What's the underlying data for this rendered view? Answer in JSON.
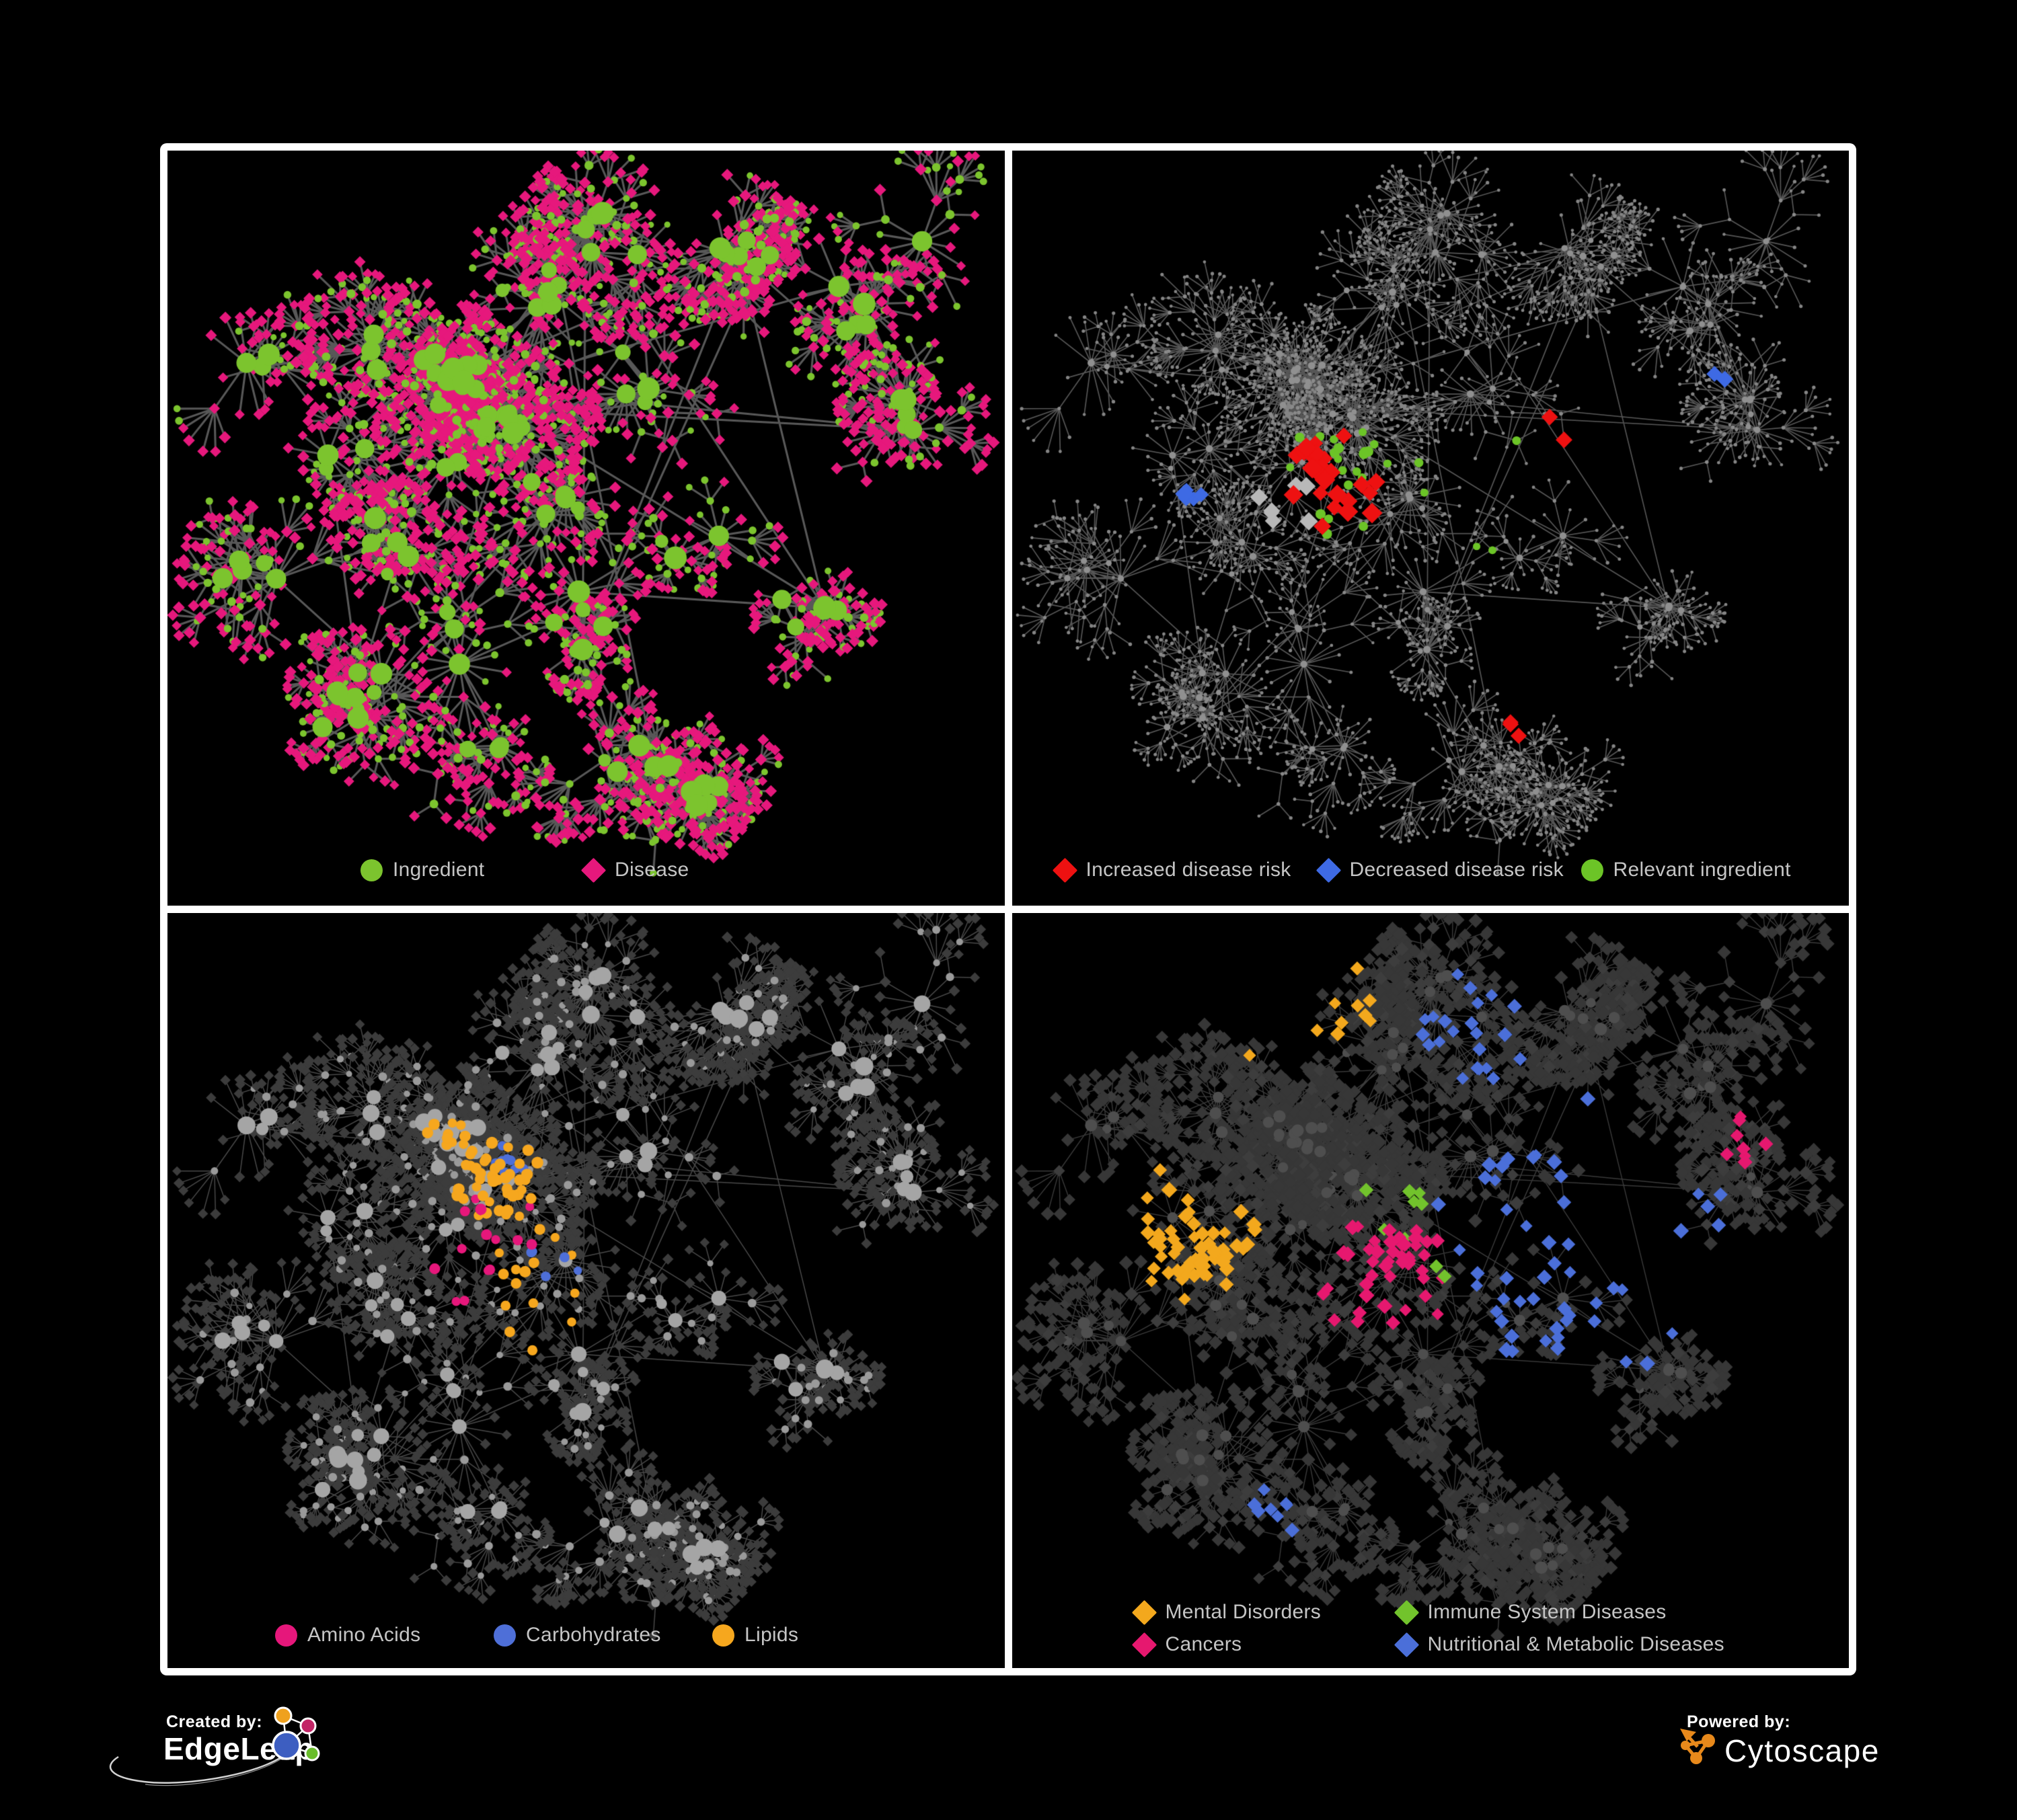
{
  "figure": {
    "description": "Four black network-graph panels in a white 2x2 frame on a black page",
    "background": "#000000",
    "frame_color": "#ffffff"
  },
  "network": {
    "seed": 1337,
    "hub_count": 120,
    "cluster_spread": 0.05,
    "extra_links": 22,
    "leaf_min": 3,
    "leaf_max": 16,
    "leaf_radius": [
      26,
      64
    ],
    "sub_prob": 0.22,
    "sub_min": 2,
    "sub_max": 7,
    "clusters": [
      [
        0.4,
        0.36
      ],
      [
        0.4,
        0.36
      ],
      [
        0.36,
        0.42
      ],
      [
        0.34,
        0.3
      ],
      [
        0.34,
        0.3
      ],
      [
        0.26,
        0.28
      ],
      [
        0.2,
        0.42
      ],
      [
        0.28,
        0.52
      ],
      [
        0.34,
        0.64
      ],
      [
        0.22,
        0.72
      ],
      [
        0.44,
        0.2
      ],
      [
        0.52,
        0.1
      ],
      [
        0.56,
        0.3
      ],
      [
        0.62,
        0.5
      ],
      [
        0.5,
        0.62
      ],
      [
        0.38,
        0.8
      ],
      [
        0.56,
        0.82
      ],
      [
        0.7,
        0.16
      ],
      [
        0.82,
        0.22
      ],
      [
        0.88,
        0.34
      ],
      [
        0.76,
        0.62
      ],
      [
        0.64,
        0.86
      ],
      [
        0.12,
        0.3
      ],
      [
        0.1,
        0.55
      ],
      [
        0.9,
        0.14
      ],
      [
        0.46,
        0.46
      ]
    ]
  },
  "panels": [
    {
      "name": "ingredient-disease",
      "legend": [
        {
          "shape": "circle",
          "color": "#7CC42E",
          "label": "Ingredient"
        },
        {
          "shape": "diamond",
          "color": "#E6187C",
          "label": "Disease"
        }
      ],
      "render": {
        "edge": {
          "color": "#676767",
          "width": 3.1,
          "alpha": 0.85
        },
        "hub_boost": [
          1.1,
          14
        ],
        "kinds": {
          "hub": {
            "shape": "circle",
            "color": "#7CC42E",
            "size": [
              13,
              20
            ]
          },
          "mid": {
            "mix": [
              {
                "shape": "diamond",
                "color": "#E6187C",
                "size": [
                  11,
                  13
                ],
                "w": 0.55
              },
              {
                "shape": "circle",
                "color": "#7CC42E",
                "size": [
                  10,
                  14
                ],
                "w": 0.45
              }
            ]
          },
          "leaf": {
            "mix": [
              {
                "shape": "diamond",
                "color": "#E6187C",
                "size": [
                  10,
                  13
                ],
                "w": 0.73
              },
              {
                "shape": "circle",
                "color": "#7CC42E",
                "size": [
                  9,
                  12
                ],
                "w": 0.27
              }
            ]
          }
        },
        "highlights": []
      }
    },
    {
      "name": "disease-risk",
      "legend": [
        {
          "shape": "diamond",
          "color": "#EE1111",
          "label": "Increased disease risk"
        },
        {
          "shape": "diamond",
          "color": "#3E6AE4",
          "label": "Decreased disease risk"
        },
        {
          "shape": "circle",
          "color": "#6CC427",
          "label": "Relevant ingredient"
        }
      ],
      "render": {
        "edge": {
          "color": "#656565",
          "width": 1.7,
          "alpha": 0.85
        },
        "hub_boost": [
          0.25,
          3
        ],
        "kinds": {
          "hub": {
            "shape": "circle",
            "color": "#909090",
            "size": [
              6,
              8
            ]
          },
          "mid": {
            "shape": "circle",
            "color": "#8A8A8A",
            "size": [
              5,
              6
            ]
          },
          "leaf": {
            "shape": "circle",
            "color": "#858585",
            "size": [
              4.5,
              5.5
            ]
          }
        },
        "highlights": [
          {
            "shape": "diamond",
            "color": "#EE1111",
            "count": 24,
            "at": [
              0.38,
              0.44
            ],
            "spread": 0.12,
            "size": [
              16,
              22
            ]
          },
          {
            "shape": "diamond",
            "color": "#EE1111",
            "count": 3,
            "at": [
              0.6,
              0.76
            ],
            "spread": 0.06,
            "size": [
              16,
              20
            ]
          },
          {
            "shape": "diamond",
            "color": "#EE1111",
            "count": 2,
            "at": [
              0.66,
              0.38
            ],
            "spread": 0.04,
            "size": [
              16,
              20
            ]
          },
          {
            "shape": "diamond",
            "color": "#B8B8B8",
            "count": 7,
            "at": [
              0.33,
              0.46
            ],
            "spread": 0.12,
            "size": [
              15,
              20
            ]
          },
          {
            "shape": "diamond",
            "color": "#3E6AE4",
            "count": 5,
            "at": [
              0.21,
              0.46
            ],
            "spread": 0.05,
            "size": [
              15,
              20
            ]
          },
          {
            "shape": "diamond",
            "color": "#3E6AE4",
            "count": 2,
            "at": [
              0.84,
              0.3
            ],
            "spread": 0.015,
            "size": [
              16,
              19
            ]
          },
          {
            "shape": "circle",
            "color": "#6CC427",
            "count": 25,
            "at": [
              0.39,
              0.44
            ],
            "spread": 0.12,
            "size": [
              12,
              16
            ]
          },
          {
            "shape": "circle",
            "color": "#6CC427",
            "count": 5,
            "at": [
              0.55,
              0.45
            ],
            "spread": 0.45,
            "size": [
              11,
              14
            ]
          }
        ]
      }
    },
    {
      "name": "nutrient-classes",
      "legend": [
        {
          "shape": "circle",
          "color": "#E6177B",
          "label": "Amino Acids"
        },
        {
          "shape": "circle",
          "color": "#4E6FD8",
          "label": "Carbohydrates"
        },
        {
          "shape": "circle",
          "color": "#F6A71E",
          "label": "Lipids"
        }
      ],
      "render": {
        "edge": {
          "color": "#7A7A7A",
          "width": 1.5,
          "alpha": 0.6
        },
        "hub_boost": [
          0.6,
          8
        ],
        "kinds": {
          "hub": {
            "shape": "circle",
            "color": "#A5A5A5",
            "size": [
              12,
              20
            ]
          },
          "mid": {
            "mix": [
              {
                "shape": "circle",
                "color": "#9A9A9A",
                "size": [
                  9,
                  13
                ],
                "w": 0.85
              },
              {
                "shape": "diamond",
                "color": "#3E3E3E",
                "size": [
                  10,
                  12
                ],
                "w": 0.15
              }
            ]
          },
          "leaf": {
            "shape": "diamond",
            "color": "#3C3C3C",
            "size": [
              10,
              12
            ]
          }
        },
        "highlights": [
          {
            "shape": "circle",
            "color": "#F6A71E",
            "count": 42,
            "at": [
              0.4,
              0.36
            ],
            "spread": 0.075,
            "size": [
              14,
              18
            ]
          },
          {
            "shape": "circle",
            "color": "#F6A71E",
            "count": 12,
            "at": [
              0.34,
              0.3
            ],
            "spread": 0.05,
            "size": [
              13,
              17
            ]
          },
          {
            "shape": "circle",
            "color": "#F6A71E",
            "count": 15,
            "at": [
              0.45,
              0.5
            ],
            "spread": 0.4,
            "size": [
              13,
              17
            ]
          },
          {
            "shape": "circle",
            "color": "#4E6FD8",
            "count": 9,
            "at": [
              0.41,
              0.34
            ],
            "spread": 0.05,
            "size": [
              13,
              16
            ]
          },
          {
            "shape": "circle",
            "color": "#4E6FD8",
            "count": 5,
            "at": [
              0.45,
              0.45
            ],
            "spread": 0.5,
            "size": [
              12,
              15
            ]
          },
          {
            "shape": "circle",
            "color": "#E6177B",
            "count": 15,
            "at": [
              0.38,
              0.45
            ],
            "spread": 0.42,
            "size": [
              13,
              17
            ]
          }
        ]
      }
    },
    {
      "name": "disease-classes",
      "legend": [
        {
          "shape": "diamond",
          "color": "#F3A81D",
          "label": "Mental Disorders"
        },
        {
          "shape": "diamond",
          "color": "#72C32C",
          "label": "Immune System Diseases"
        },
        {
          "shape": "diamond",
          "color": "#E6186F",
          "label": "Cancers"
        },
        {
          "shape": "diamond",
          "color": "#4B6FD9",
          "label": "Nutritional & Metabolic Diseases"
        }
      ],
      "render": {
        "edge": {
          "color": "#6B6B6B",
          "width": 1.4,
          "alpha": 0.55
        },
        "hub_boost": [
          0.5,
          6
        ],
        "kinds": {
          "hub": {
            "shape": "circle",
            "color": "#4E4E4E",
            "size": [
              9,
              13
            ]
          },
          "mid": {
            "shape": "diamond",
            "color": "#3D3D3D",
            "size": [
              12,
              15
            ]
          },
          "leaf": {
            "shape": "diamond",
            "color": "#373737",
            "size": [
              12,
              15
            ]
          }
        },
        "highlights": [
          {
            "shape": "diamond",
            "color": "#F3A81D",
            "count": 60,
            "at": [
              0.2,
              0.44
            ],
            "spread": 0.09,
            "size": [
              13,
              17
            ]
          },
          {
            "shape": "diamond",
            "color": "#F3A81D",
            "count": 10,
            "at": [
              0.34,
              0.12
            ],
            "spread": 0.12,
            "size": [
              13,
              16
            ]
          },
          {
            "shape": "diamond",
            "color": "#E6186F",
            "count": 44,
            "at": [
              0.45,
              0.48
            ],
            "spread": 0.11,
            "size": [
              13,
              17
            ]
          },
          {
            "shape": "diamond",
            "color": "#E6186F",
            "count": 8,
            "at": [
              0.87,
              0.3
            ],
            "spread": 0.05,
            "size": [
              13,
              16
            ]
          },
          {
            "shape": "diamond",
            "color": "#4B6FD9",
            "count": 50,
            "at": [
              0.68,
              0.45
            ],
            "spread": 0.18,
            "size": [
              13,
              17
            ]
          },
          {
            "shape": "diamond",
            "color": "#4B6FD9",
            "count": 22,
            "at": [
              0.56,
              0.14
            ],
            "spread": 0.25,
            "size": [
              13,
              16
            ]
          },
          {
            "shape": "diamond",
            "color": "#4B6FD9",
            "count": 8,
            "at": [
              0.32,
              0.78
            ],
            "spread": 0.18,
            "size": [
              13,
              16
            ]
          },
          {
            "shape": "diamond",
            "color": "#72C32C",
            "count": 9,
            "at": [
              0.48,
              0.42
            ],
            "spread": 0.45,
            "size": [
              13,
              16
            ]
          }
        ]
      }
    }
  ],
  "branding": {
    "created_by": "Created by:",
    "creator": "EdgeLeap",
    "powered_by": "Powered by:",
    "engine": "Cytoscape",
    "edgeleap_colors": {
      "orange": "#EFA11E",
      "pink": "#C22566",
      "blue": "#3D5EC1",
      "green": "#69BD2A",
      "line": "#FFFFFF"
    },
    "cytoscape_color": "#E8891B"
  }
}
